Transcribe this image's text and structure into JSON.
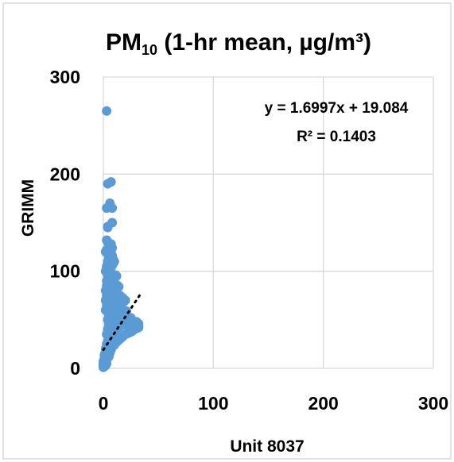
{
  "chart_data": {
    "type": "scatter",
    "title": "PM10 (1-hr mean, µg/m³)",
    "title_parts": {
      "main": "PM",
      "subscript": "10",
      "rest": " (1-hr mean, µg/m³)"
    },
    "xlabel": "Unit 8037",
    "ylabel": "GRIMM",
    "xlim": [
      0,
      300
    ],
    "ylim": [
      0,
      300
    ],
    "x_ticks": [
      "0",
      "100",
      "200",
      "300"
    ],
    "y_ticks": [
      "0",
      "100",
      "200",
      "300"
    ],
    "grid": "on",
    "legend": "none",
    "point_color": "#5B9BD5",
    "trendline": {
      "type": "linear",
      "slope": 1.6997,
      "intercept": 19.084,
      "x_range": [
        0,
        33
      ],
      "style": "dotted",
      "color": "#000000",
      "equation_label": "y = 1.6997x + 19.084",
      "r2_label": "R² = 0.1403"
    },
    "series": [
      {
        "x": [
          1,
          1,
          2,
          2,
          3,
          2,
          3,
          4,
          4,
          5,
          6,
          5,
          7,
          8,
          9,
          10,
          11,
          12,
          14,
          16,
          18,
          20,
          22,
          24,
          26,
          28,
          30,
          32,
          1,
          2,
          3,
          4,
          5,
          6,
          7,
          8,
          10,
          12,
          14,
          16,
          18,
          20,
          22,
          24,
          26,
          28,
          30,
          32,
          2,
          3,
          4,
          5,
          6,
          7,
          8,
          9,
          10,
          11,
          12,
          13,
          14,
          15,
          16,
          17,
          18,
          19,
          20,
          21,
          3,
          4,
          5,
          6,
          7,
          8,
          9,
          10,
          11,
          12,
          13,
          14,
          15,
          16,
          17,
          18,
          19,
          20,
          4,
          5,
          6,
          7,
          8,
          9,
          10,
          11,
          12,
          13,
          14,
          15,
          16,
          17,
          18,
          2,
          3,
          4,
          5,
          6,
          7,
          8,
          9,
          10,
          11,
          12,
          13,
          14,
          2,
          3,
          4,
          5,
          6,
          7,
          8,
          9,
          10,
          11,
          12,
          2,
          3,
          4,
          5,
          6,
          7,
          8,
          9,
          10,
          3,
          4,
          5,
          6,
          7,
          8,
          9,
          2,
          3,
          4,
          5,
          6,
          7,
          3,
          4,
          5,
          6,
          7,
          8,
          2,
          4,
          6,
          8,
          3,
          5,
          7,
          4,
          6,
          8,
          3,
          6,
          4,
          8,
          3,
          6,
          4,
          7,
          3,
          8,
          4,
          20,
          25,
          28,
          30,
          31,
          32,
          26,
          22,
          18,
          15,
          1,
          1,
          2,
          2,
          1,
          2,
          1,
          3,
          1,
          2,
          0,
          0,
          1,
          0,
          1,
          0,
          1,
          2
        ],
        "y": [
          5,
          10,
          12,
          15,
          18,
          8,
          22,
          25,
          14,
          20,
          28,
          12,
          30,
          35,
          32,
          38,
          40,
          35,
          42,
          44,
          45,
          46,
          44,
          43,
          45,
          47,
          48,
          46,
          3,
          6,
          9,
          11,
          14,
          16,
          19,
          22,
          24,
          27,
          29,
          31,
          33,
          35,
          36,
          37,
          38,
          40,
          41,
          42,
          20,
          25,
          28,
          32,
          35,
          38,
          40,
          42,
          44,
          45,
          47,
          48,
          50,
          52,
          54,
          55,
          56,
          57,
          58,
          59,
          35,
          40,
          45,
          48,
          50,
          52,
          55,
          58,
          60,
          62,
          63,
          64,
          65,
          66,
          67,
          68,
          69,
          70,
          50,
          55,
          58,
          62,
          64,
          66,
          68,
          70,
          72,
          73,
          74,
          75,
          74,
          73,
          72,
          60,
          65,
          68,
          72,
          75,
          78,
          80,
          82,
          84,
          85,
          86,
          85,
          84,
          70,
          75,
          80,
          85,
          88,
          90,
          92,
          94,
          95,
          96,
          95,
          80,
          85,
          90,
          95,
          100,
          104,
          106,
          108,
          110,
          90,
          95,
          100,
          105,
          110,
          114,
          112,
          100,
          104,
          108,
          112,
          116,
          118,
          105,
          110,
          115,
          118,
          120,
          116,
          120,
          118,
          112,
          108,
          122,
          125,
          128,
          130,
          126,
          124,
          132,
          128,
          145,
          150,
          165,
          170,
          190,
          192,
          265,
          165,
          146,
          50,
          52,
          48,
          46,
          44,
          43,
          49,
          51,
          47,
          45,
          2,
          4,
          6,
          3,
          8,
          10,
          12,
          5,
          14,
          16,
          1,
          3,
          2,
          5,
          4,
          7,
          6,
          9
        ]
      }
    ]
  }
}
